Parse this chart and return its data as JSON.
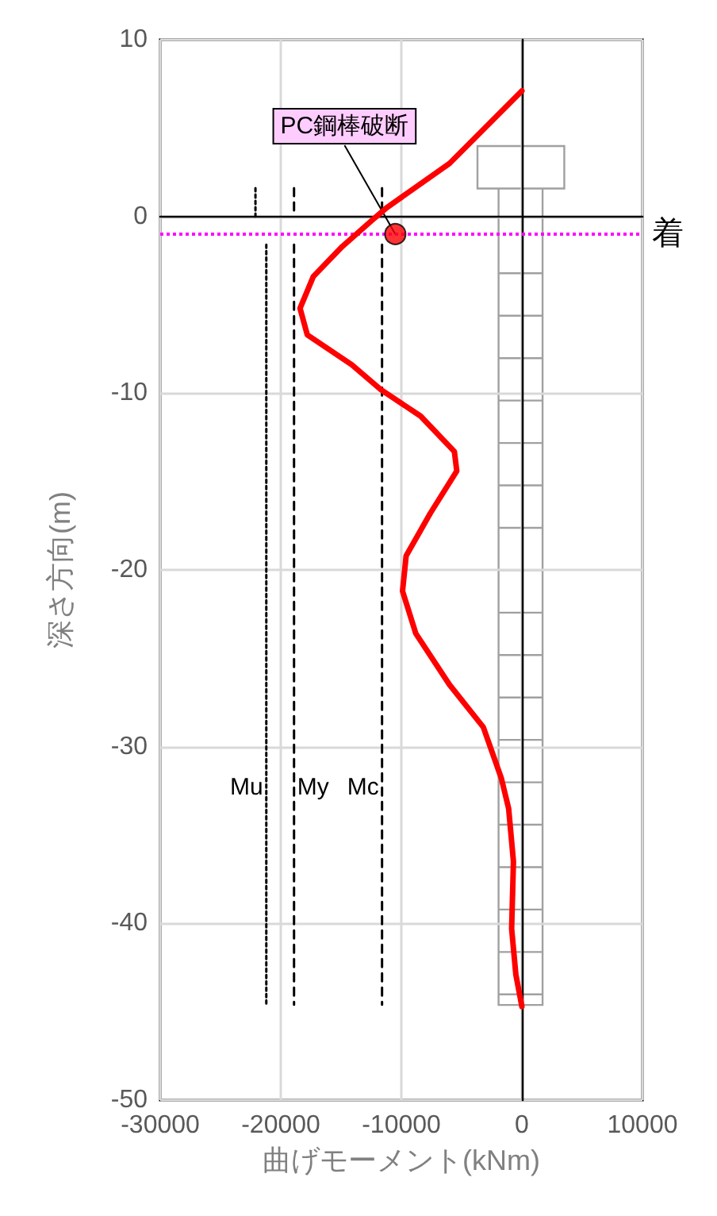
{
  "chart_data": {
    "type": "line",
    "xlabel": "曲げモーメント(kNm)",
    "ylabel": "深さ方向(m)",
    "xlim": [
      -30000,
      10000
    ],
    "xticks": [
      -30000,
      -20000,
      -10000,
      0,
      10000
    ],
    "ylim": [
      -50,
      10
    ],
    "yticks": [
      -50,
      -40,
      -30,
      -20,
      -10,
      0,
      10
    ],
    "grid": true,
    "legend": false,
    "marker": "none",
    "series": [
      {
        "color": "#ff0000",
        "x": [
          0,
          -6000,
          -11200,
          -12400,
          -14900,
          -17300,
          -18400,
          -17800,
          -14100,
          -11700,
          -8400,
          -5600,
          -5400,
          -7600,
          -9600,
          -9900,
          -8800,
          -6000,
          -3200,
          -1700,
          -1100,
          -700,
          -850,
          -500,
          0
        ],
        "values": [
          7.1,
          3.0,
          0.5,
          -0.2,
          -1.7,
          -3.4,
          -5.2,
          -6.7,
          -8.4,
          -9.8,
          -11.3,
          -13.3,
          -14.4,
          -16.8,
          -19.2,
          -21.2,
          -23.6,
          -26.5,
          -28.9,
          -31.8,
          -33.5,
          -36.5,
          -40.3,
          -42.9,
          -44.7
        ]
      },
      {
        "name": "Mu",
        "color": "#000000",
        "line_style": "dotted",
        "x": [
          -21200,
          -21200
        ],
        "values": [
          -1.6,
          -44.6
        ]
      },
      {
        "name": "My",
        "color": "#000000",
        "line_style": "dashed",
        "x": [
          -18900,
          -18900
        ],
        "values": [
          -1.6,
          -44.6
        ]
      },
      {
        "name": "Mc",
        "color": "#000000",
        "line_style": "dashed",
        "x": [
          -11600,
          -11600
        ],
        "values": [
          -1.6,
          -44.6
        ]
      },
      {
        "color": "#000000",
        "line_style": "dotted",
        "x": [
          -22100,
          -22100
        ],
        "values": [
          1.6,
          0
        ]
      },
      {
        "color": "#000000",
        "line_style": "dashed",
        "x": [
          -18900,
          -18900
        ],
        "values": [
          1.6,
          0
        ]
      },
      {
        "color": "#000000",
        "line_style": "dashed",
        "x": [
          -11600,
          -11600
        ],
        "values": [
          1.6,
          0
        ]
      },
      {
        "type": "scatter",
        "marker": "circle",
        "color": "#ff0000",
        "x": [
          -10500
        ],
        "values": [
          -1.0
        ]
      }
    ],
    "ref_lines": [
      {
        "axis": "y",
        "value": -1,
        "label": "着",
        "color": "#ff00ff",
        "line_style": "dotted"
      }
    ],
    "annotations": [
      {
        "text": "PC鋼棒破断",
        "x": -10500,
        "y": -1
      }
    ]
  }
}
